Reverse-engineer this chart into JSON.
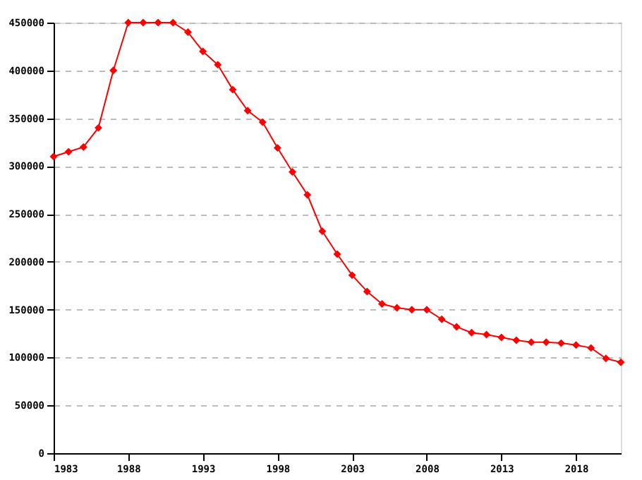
{
  "chart_data": {
    "type": "line",
    "x": [
      1983,
      1984,
      1985,
      1986,
      1987,
      1988,
      1989,
      1990,
      1991,
      1992,
      1993,
      1994,
      1995,
      1996,
      1997,
      1998,
      1999,
      2000,
      2001,
      2002,
      2003,
      2004,
      2005,
      2006,
      2007,
      2008,
      2009,
      2010,
      2011,
      2012,
      2013,
      2014,
      2015,
      2016,
      2017,
      2018,
      2019,
      2020,
      2021
    ],
    "series": [
      {
        "color": "#ff0000",
        "values": [
          310000,
          315000,
          320000,
          340000,
          400000,
          450000,
          450000,
          450000,
          450000,
          440000,
          420000,
          406000,
          380000,
          358000,
          346000,
          319000,
          294000,
          270000,
          232000,
          208000,
          186000,
          169000,
          156000,
          152000,
          150000,
          150000,
          140000,
          132000,
          126000,
          124000,
          121000,
          118000,
          116000,
          116000,
          115000,
          113000,
          110000,
          99000,
          95000
        ]
      }
    ],
    "xlim": [
      1983,
      2021
    ],
    "xticks": [
      1983,
      1988,
      1993,
      1998,
      2003,
      2008,
      2013,
      2018
    ],
    "ylim": [
      0,
      450000
    ],
    "yticks": [
      0,
      50000,
      100000,
      150000,
      200000,
      250000,
      300000,
      350000,
      400000,
      450000
    ],
    "grid": "y",
    "marker": "diamond",
    "line_style": "solid"
  }
}
